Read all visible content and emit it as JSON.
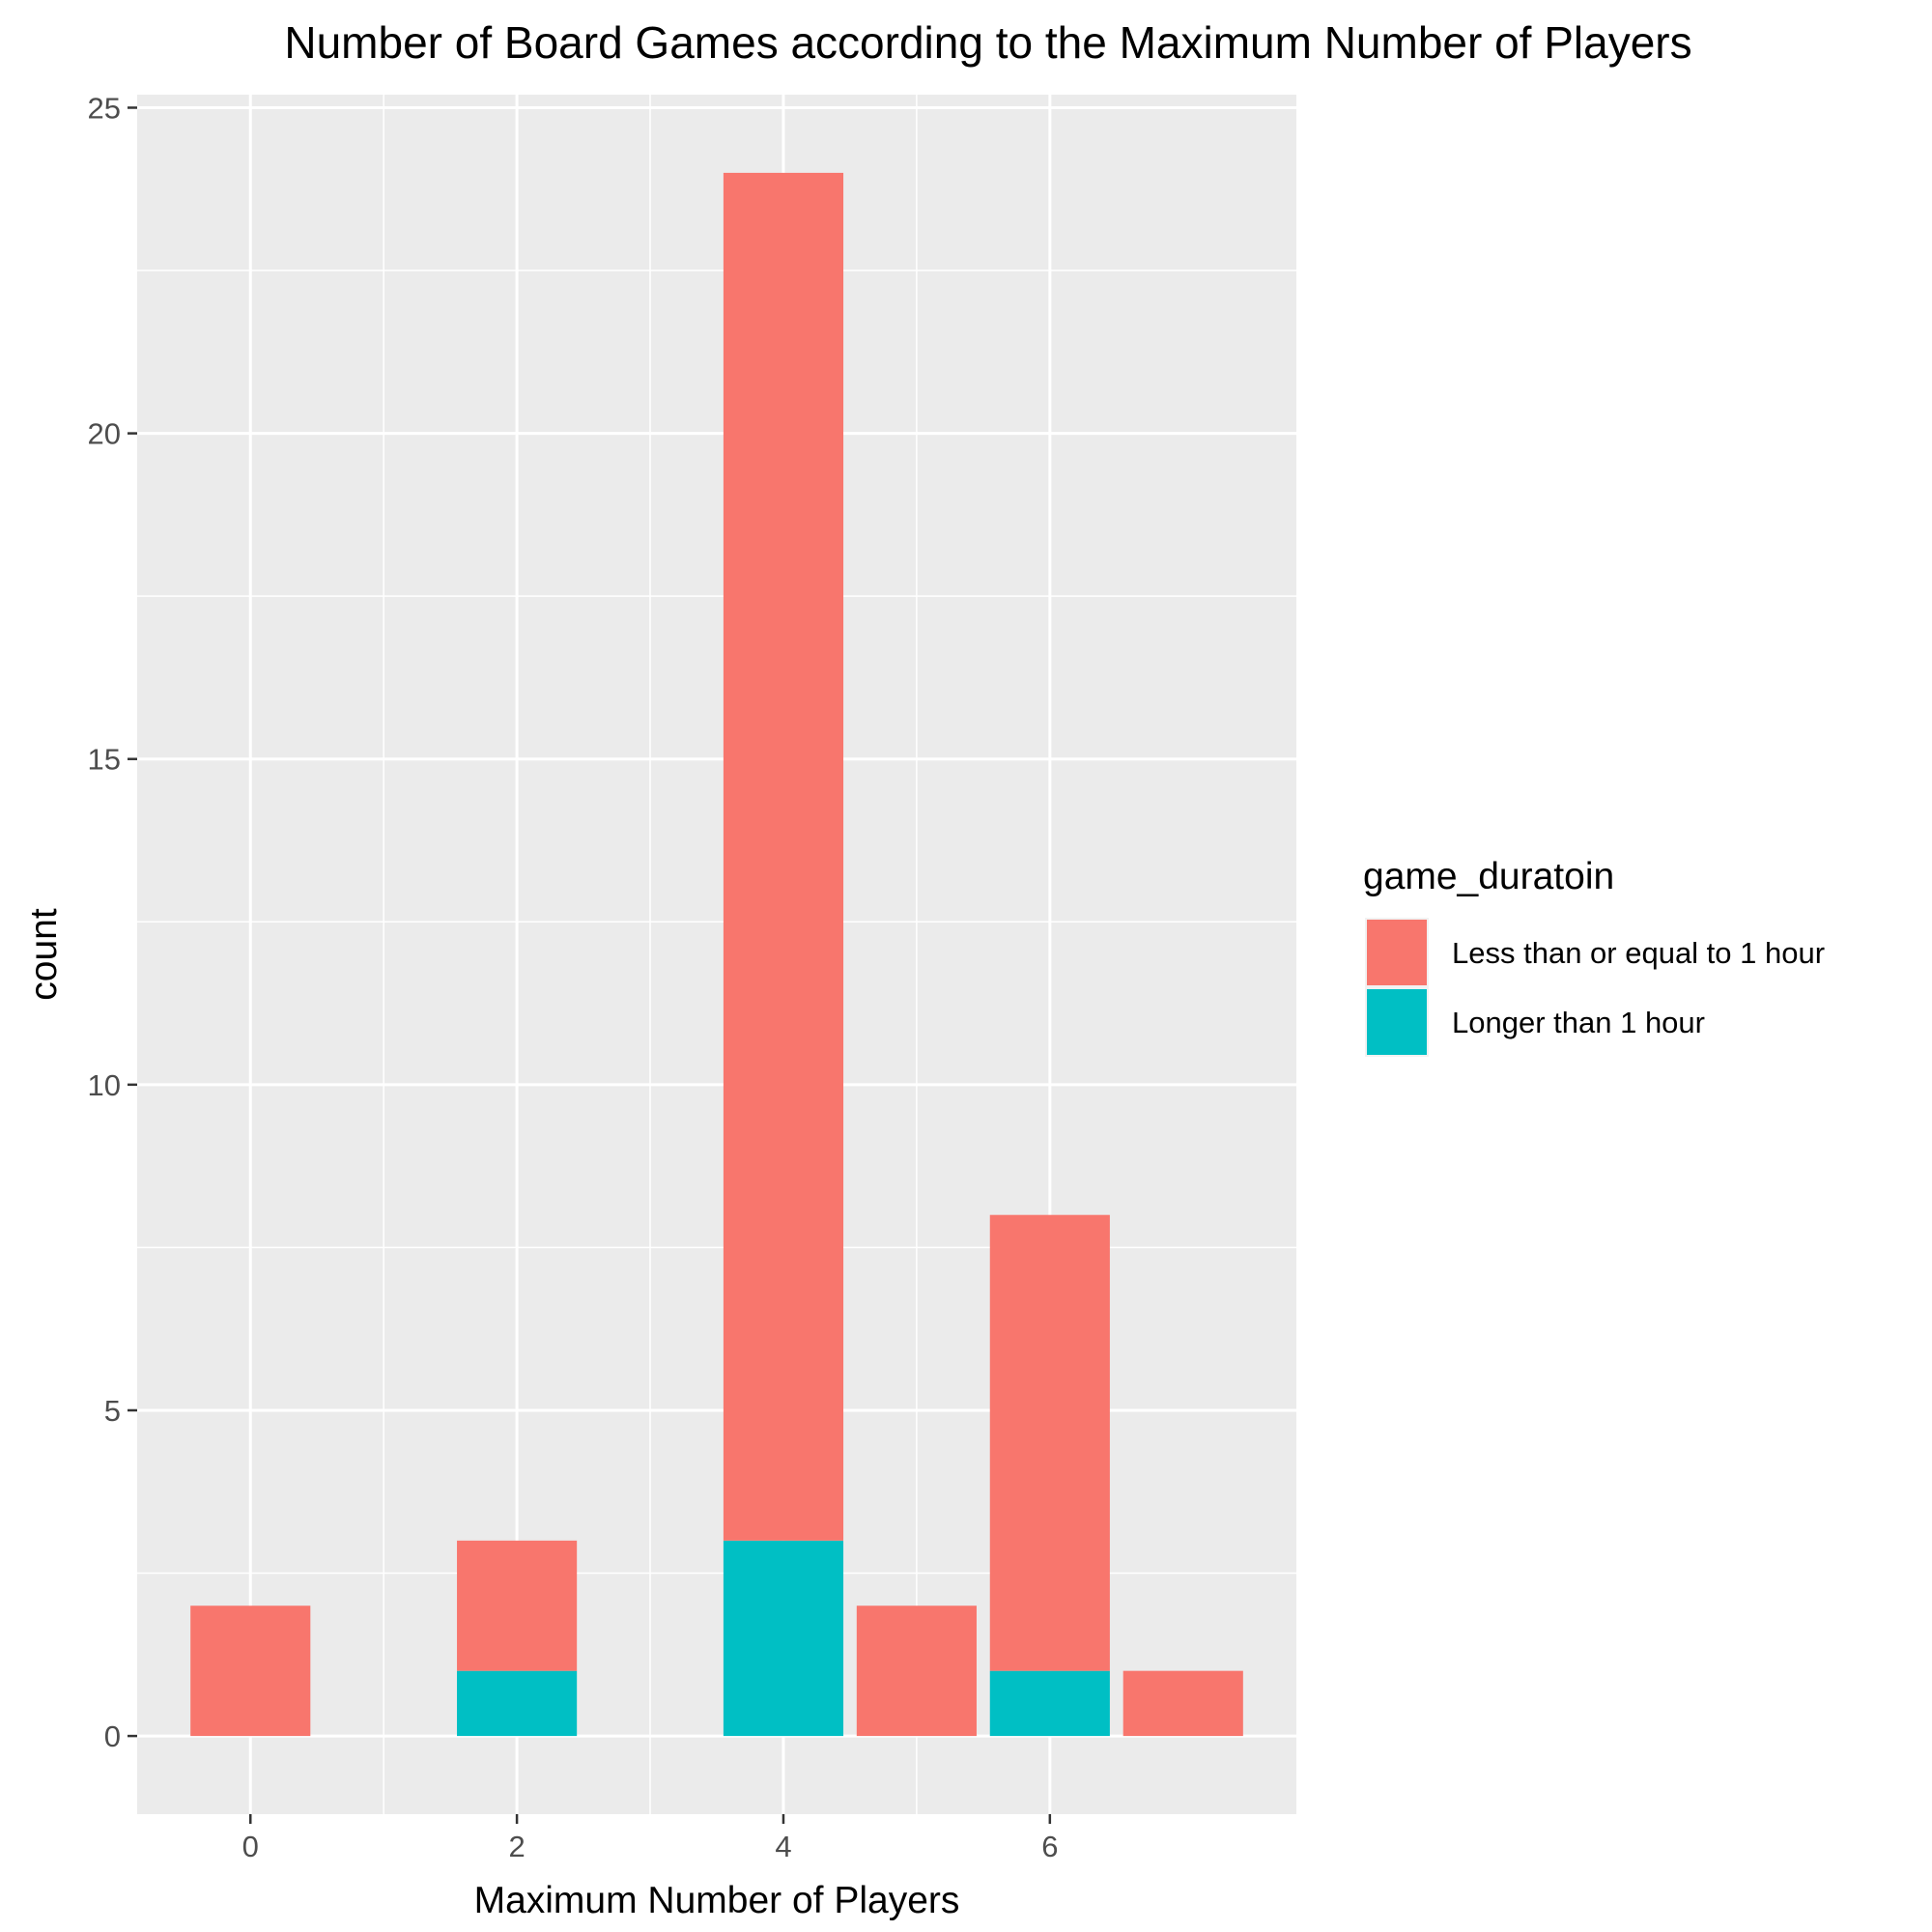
{
  "chart_data": {
    "type": "bar",
    "stacked": true,
    "title": "Number of Board Games according to the Maximum Number of Players",
    "xlabel": "Maximum Number of Players",
    "ylabel": "count",
    "x": [
      0,
      2,
      4,
      5,
      6,
      7
    ],
    "series": [
      {
        "name": "Longer than 1 hour",
        "color": "#00BFC4",
        "values": [
          0,
          1,
          3,
          0,
          1,
          0
        ]
      },
      {
        "name": "Less than or equal to 1 hour",
        "color": "#F8766D",
        "values": [
          2,
          2,
          21,
          2,
          7,
          1
        ]
      }
    ],
    "xlim": [
      -0.85,
      7.85
    ],
    "ylim": [
      -1.2,
      25.2
    ],
    "x_ticks": [
      0,
      2,
      4,
      6
    ],
    "y_ticks": [
      0,
      5,
      10,
      15,
      20,
      25
    ],
    "bar_width": 0.9,
    "grid": true,
    "panel_background": "#EBEBEB",
    "legend": {
      "title": "game_duratoin",
      "position": "right",
      "entries": [
        {
          "label": "Less than or equal to 1 hour",
          "color": "#F8766D"
        },
        {
          "label": "Longer than 1 hour",
          "color": "#00BFC4"
        }
      ]
    }
  }
}
